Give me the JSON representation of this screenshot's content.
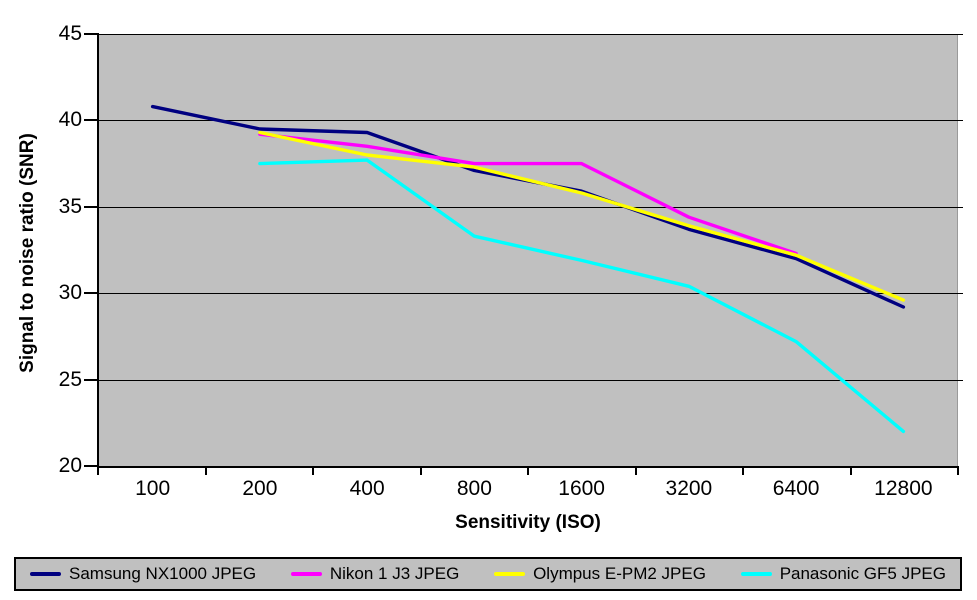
{
  "chart_data": {
    "type": "line",
    "title": "",
    "xlabel": "Sensitivity (ISO)",
    "ylabel": "Signal to noise ratio (SNR)",
    "categories": [
      "100",
      "200",
      "400",
      "800",
      "1600",
      "3200",
      "6400",
      "12800"
    ],
    "y_tick_labels": [
      "45",
      "40",
      "35",
      "30",
      "25",
      "20"
    ],
    "ylim": [
      20,
      45
    ],
    "grid": "horizontal-on",
    "legend_position": "bottom",
    "plot_bg_color": "#C0C0C0",
    "gridline_color": "#000000",
    "series": [
      {
        "name": "Samsung NX1000 JPEG",
        "color": "#000080",
        "values": [
          40.8,
          39.5,
          39.3,
          37.1,
          35.9,
          33.7,
          32.0,
          29.2
        ]
      },
      {
        "name": "Nikon 1 J3 JPEG",
        "color": "#FF00FF",
        "values": [
          null,
          39.2,
          38.5,
          37.5,
          37.5,
          34.4,
          32.3,
          null
        ]
      },
      {
        "name": "Olympus E-PM2 JPEG",
        "color": "#FFFF00",
        "values": [
          null,
          39.3,
          38.0,
          37.3,
          35.8,
          33.9,
          32.2,
          29.6
        ]
      },
      {
        "name": "Panasonic GF5 JPEG",
        "color": "#00FFFF",
        "values": [
          null,
          37.5,
          37.7,
          33.3,
          31.9,
          30.4,
          27.2,
          22.0
        ]
      }
    ]
  }
}
